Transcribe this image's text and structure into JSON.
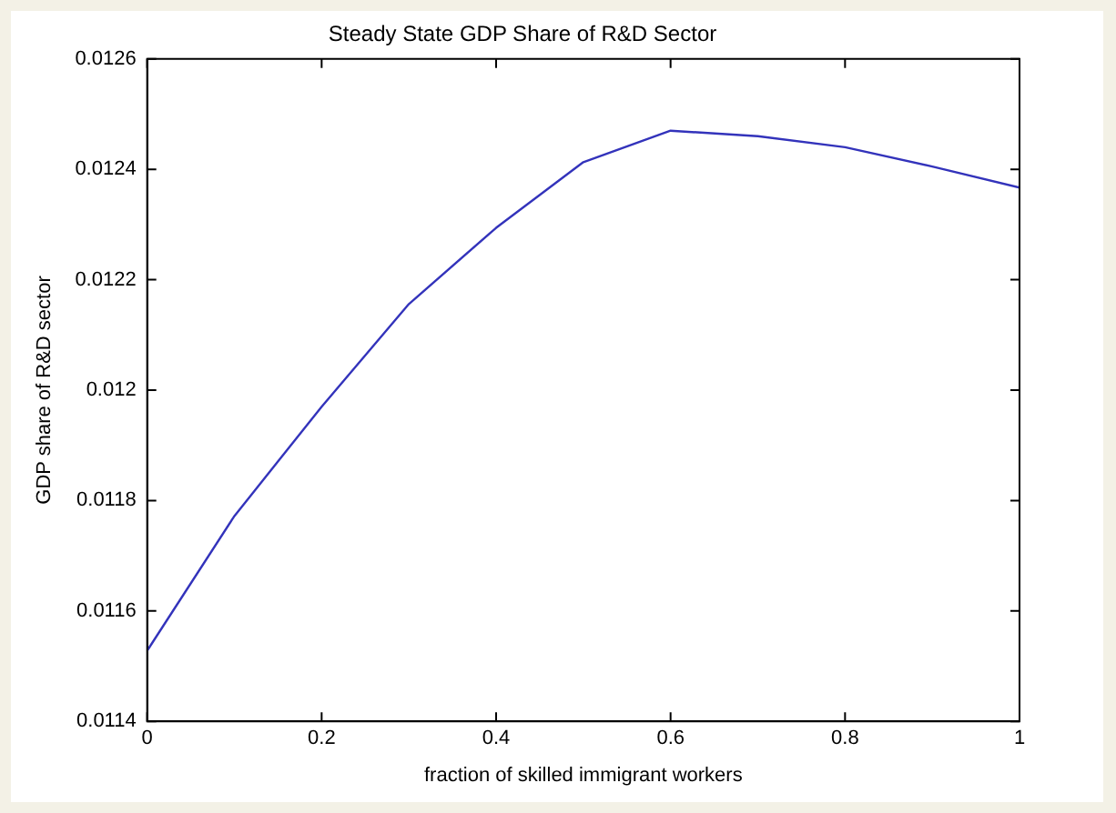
{
  "chart_data": {
    "type": "line",
    "title": "Steady State GDP Share of R&D Sector",
    "xlabel": "fraction of skilled immigrant workers",
    "ylabel": "GDP share of R&D sector",
    "x": [
      0,
      0.1,
      0.2,
      0.3,
      0.4,
      0.5,
      0.6,
      0.7,
      0.8,
      0.9,
      1
    ],
    "series": [
      {
        "color": "#3333bb",
        "values": [
          0.011528,
          0.011772,
          0.01197,
          0.012156,
          0.012294,
          0.012413,
          0.01247,
          0.01246,
          0.01244,
          0.012405,
          0.012367
        ]
      }
    ],
    "xlim": [
      0,
      1
    ],
    "xticks": [
      0,
      0.2,
      0.4,
      0.6,
      0.8,
      1
    ],
    "ylim": [
      0.0114,
      0.0126
    ],
    "yticks": [
      0.0114,
      0.0116,
      0.0118,
      0.012,
      0.0122,
      0.0124,
      0.0126
    ],
    "grid": false,
    "legend": false,
    "marker": "none",
    "line_style": "solid"
  }
}
